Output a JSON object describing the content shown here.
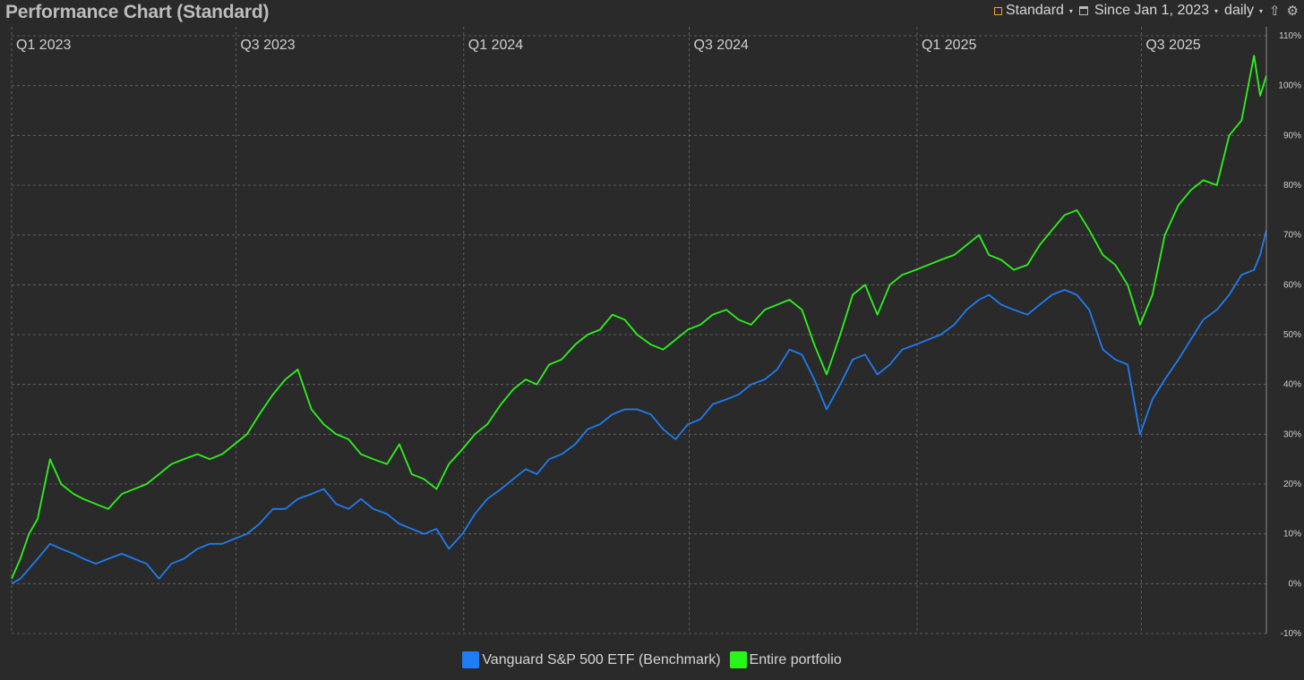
{
  "header": {
    "title": "Performance Chart (Standard)",
    "mode_label": "Standard",
    "period_label": "Since Jan 1, 2023",
    "interval_label": "daily",
    "icons": [
      "standard-square-icon",
      "window-icon",
      "upload-icon",
      "gear-icon"
    ]
  },
  "colors": {
    "background": "#2a2a2a",
    "grid": "#6b6b6b",
    "benchmark": "#1f7cf2",
    "portfolio": "#2af51a",
    "accent": "#f0a030"
  },
  "legend": {
    "benchmark_label": "Vanguard S&P 500 ETF (Benchmark)",
    "portfolio_label": "Entire portfolio"
  },
  "chart_data": {
    "type": "line",
    "title": "Performance Chart (Standard)",
    "x_type": "date",
    "x_range": [
      "2023-01-01",
      "2025-10-10"
    ],
    "x_quarter_ticks": [
      {
        "label": "Q1 2023",
        "date": "2023-01-01"
      },
      {
        "label": "Q3 2023",
        "date": "2023-07-01"
      },
      {
        "label": "Q1 2024",
        "date": "2024-01-01"
      },
      {
        "label": "Q3 2024",
        "date": "2024-07-01"
      },
      {
        "label": "Q1 2025",
        "date": "2025-01-01"
      },
      {
        "label": "Q3 2025",
        "date": "2025-07-01"
      }
    ],
    "y_unit": "%",
    "ylim": [
      -10,
      110
    ],
    "y_ticks": [
      -10,
      0,
      10,
      20,
      30,
      40,
      50,
      60,
      70,
      80,
      90,
      100,
      110
    ],
    "y_tick_labels": [
      "-10%",
      "0%",
      "10%",
      "20%",
      "30%",
      "40%",
      "50%",
      "60%",
      "70%",
      "80%",
      "90%",
      "100%",
      "110%"
    ],
    "grid": true,
    "legend_position": "bottom-center",
    "series": [
      {
        "name": "Vanguard S&P 500 ETF (Benchmark)",
        "points": [
          [
            "2023-01-01",
            0
          ],
          [
            "2023-01-08",
            1
          ],
          [
            "2023-01-15",
            3
          ],
          [
            "2023-01-22",
            5
          ],
          [
            "2023-02-01",
            8
          ],
          [
            "2023-02-10",
            7
          ],
          [
            "2023-02-20",
            6
          ],
          [
            "2023-02-28",
            5
          ],
          [
            "2023-03-10",
            4
          ],
          [
            "2023-03-20",
            5
          ],
          [
            "2023-03-31",
            6
          ],
          [
            "2023-04-10",
            5
          ],
          [
            "2023-04-20",
            4
          ],
          [
            "2023-04-30",
            1
          ],
          [
            "2023-05-10",
            4
          ],
          [
            "2023-05-20",
            5
          ],
          [
            "2023-05-31",
            7
          ],
          [
            "2023-06-10",
            8
          ],
          [
            "2023-06-20",
            8
          ],
          [
            "2023-06-30",
            9
          ],
          [
            "2023-07-10",
            10
          ],
          [
            "2023-07-20",
            12
          ],
          [
            "2023-07-31",
            15
          ],
          [
            "2023-08-10",
            15
          ],
          [
            "2023-08-20",
            17
          ],
          [
            "2023-08-31",
            18
          ],
          [
            "2023-09-10",
            19
          ],
          [
            "2023-09-20",
            16
          ],
          [
            "2023-09-30",
            15
          ],
          [
            "2023-10-10",
            17
          ],
          [
            "2023-10-20",
            15
          ],
          [
            "2023-10-31",
            14
          ],
          [
            "2023-11-10",
            12
          ],
          [
            "2023-11-20",
            11
          ],
          [
            "2023-11-30",
            10
          ],
          [
            "2023-12-10",
            11
          ],
          [
            "2023-12-20",
            7
          ],
          [
            "2023-12-31",
            10
          ],
          [
            "2024-01-10",
            14
          ],
          [
            "2024-01-20",
            17
          ],
          [
            "2024-01-31",
            19
          ],
          [
            "2024-02-10",
            21
          ],
          [
            "2024-02-20",
            23
          ],
          [
            "2024-02-29",
            22
          ],
          [
            "2024-03-10",
            25
          ],
          [
            "2024-03-20",
            26
          ],
          [
            "2024-03-31",
            28
          ],
          [
            "2024-04-10",
            31
          ],
          [
            "2024-04-20",
            32
          ],
          [
            "2024-04-30",
            34
          ],
          [
            "2024-05-10",
            35
          ],
          [
            "2024-05-20",
            35
          ],
          [
            "2024-05-31",
            34
          ],
          [
            "2024-06-10",
            31
          ],
          [
            "2024-06-20",
            29
          ],
          [
            "2024-06-30",
            32
          ],
          [
            "2024-07-10",
            33
          ],
          [
            "2024-07-20",
            36
          ],
          [
            "2024-07-31",
            37
          ],
          [
            "2024-08-10",
            38
          ],
          [
            "2024-08-20",
            40
          ],
          [
            "2024-08-31",
            41
          ],
          [
            "2024-09-10",
            43
          ],
          [
            "2024-09-20",
            47
          ],
          [
            "2024-09-30",
            46
          ],
          [
            "2024-10-10",
            41
          ],
          [
            "2024-10-20",
            35
          ],
          [
            "2024-10-31",
            40
          ],
          [
            "2024-11-10",
            45
          ],
          [
            "2024-11-20",
            46
          ],
          [
            "2024-11-30",
            42
          ],
          [
            "2024-12-10",
            44
          ],
          [
            "2024-12-20",
            47
          ],
          [
            "2024-12-31",
            48
          ],
          [
            "2025-01-10",
            49
          ],
          [
            "2025-01-20",
            50
          ],
          [
            "2025-01-31",
            52
          ],
          [
            "2025-02-10",
            55
          ],
          [
            "2025-02-20",
            57
          ],
          [
            "2025-02-28",
            58
          ],
          [
            "2025-03-10",
            56
          ],
          [
            "2025-03-20",
            55
          ],
          [
            "2025-03-31",
            54
          ],
          [
            "2025-04-10",
            56
          ],
          [
            "2025-04-20",
            58
          ],
          [
            "2025-04-30",
            59
          ],
          [
            "2025-05-10",
            58
          ],
          [
            "2025-05-20",
            55
          ],
          [
            "2025-05-31",
            47
          ],
          [
            "2025-06-10",
            45
          ],
          [
            "2025-06-20",
            44
          ],
          [
            "2025-06-30",
            30
          ],
          [
            "2025-07-10",
            37
          ],
          [
            "2025-07-20",
            41
          ],
          [
            "2025-07-31",
            45
          ],
          [
            "2025-08-10",
            49
          ],
          [
            "2025-08-20",
            53
          ],
          [
            "2025-08-31",
            55
          ],
          [
            "2025-09-10",
            58
          ],
          [
            "2025-09-20",
            62
          ],
          [
            "2025-09-30",
            63
          ],
          [
            "2025-10-05",
            66
          ],
          [
            "2025-10-10",
            71
          ]
        ]
      },
      {
        "name": "Entire portfolio",
        "points": [
          [
            "2023-01-01",
            1
          ],
          [
            "2023-01-08",
            5
          ],
          [
            "2023-01-15",
            10
          ],
          [
            "2023-01-22",
            13
          ],
          [
            "2023-02-01",
            25
          ],
          [
            "2023-02-10",
            20
          ],
          [
            "2023-02-20",
            18
          ],
          [
            "2023-02-28",
            17
          ],
          [
            "2023-03-10",
            16
          ],
          [
            "2023-03-20",
            15
          ],
          [
            "2023-03-31",
            18
          ],
          [
            "2023-04-10",
            19
          ],
          [
            "2023-04-20",
            20
          ],
          [
            "2023-04-30",
            22
          ],
          [
            "2023-05-10",
            24
          ],
          [
            "2023-05-20",
            25
          ],
          [
            "2023-05-31",
            26
          ],
          [
            "2023-06-10",
            25
          ],
          [
            "2023-06-20",
            26
          ],
          [
            "2023-06-30",
            28
          ],
          [
            "2023-07-10",
            30
          ],
          [
            "2023-07-20",
            34
          ],
          [
            "2023-07-31",
            38
          ],
          [
            "2023-08-10",
            41
          ],
          [
            "2023-08-20",
            43
          ],
          [
            "2023-08-31",
            35
          ],
          [
            "2023-09-10",
            32
          ],
          [
            "2023-09-20",
            30
          ],
          [
            "2023-09-30",
            29
          ],
          [
            "2023-10-10",
            26
          ],
          [
            "2023-10-20",
            25
          ],
          [
            "2023-10-31",
            24
          ],
          [
            "2023-11-10",
            28
          ],
          [
            "2023-11-20",
            22
          ],
          [
            "2023-11-30",
            21
          ],
          [
            "2023-12-10",
            19
          ],
          [
            "2023-12-20",
            24
          ],
          [
            "2023-12-31",
            27
          ],
          [
            "2024-01-10",
            30
          ],
          [
            "2024-01-20",
            32
          ],
          [
            "2024-01-31",
            36
          ],
          [
            "2024-02-10",
            39
          ],
          [
            "2024-02-20",
            41
          ],
          [
            "2024-02-29",
            40
          ],
          [
            "2024-03-10",
            44
          ],
          [
            "2024-03-20",
            45
          ],
          [
            "2024-03-31",
            48
          ],
          [
            "2024-04-10",
            50
          ],
          [
            "2024-04-20",
            51
          ],
          [
            "2024-04-30",
            54
          ],
          [
            "2024-05-10",
            53
          ],
          [
            "2024-05-20",
            50
          ],
          [
            "2024-05-31",
            48
          ],
          [
            "2024-06-10",
            47
          ],
          [
            "2024-06-20",
            49
          ],
          [
            "2024-06-30",
            51
          ],
          [
            "2024-07-10",
            52
          ],
          [
            "2024-07-20",
            54
          ],
          [
            "2024-07-31",
            55
          ],
          [
            "2024-08-10",
            53
          ],
          [
            "2024-08-20",
            52
          ],
          [
            "2024-08-31",
            55
          ],
          [
            "2024-09-10",
            56
          ],
          [
            "2024-09-20",
            57
          ],
          [
            "2024-09-30",
            55
          ],
          [
            "2024-10-10",
            48
          ],
          [
            "2024-10-20",
            42
          ],
          [
            "2024-10-31",
            50
          ],
          [
            "2024-11-10",
            58
          ],
          [
            "2024-11-20",
            60
          ],
          [
            "2024-11-30",
            54
          ],
          [
            "2024-12-10",
            60
          ],
          [
            "2024-12-20",
            62
          ],
          [
            "2024-12-31",
            63
          ],
          [
            "2025-01-10",
            64
          ],
          [
            "2025-01-20",
            65
          ],
          [
            "2025-01-31",
            66
          ],
          [
            "2025-02-10",
            68
          ],
          [
            "2025-02-20",
            70
          ],
          [
            "2025-02-28",
            66
          ],
          [
            "2025-03-10",
            65
          ],
          [
            "2025-03-20",
            63
          ],
          [
            "2025-03-31",
            64
          ],
          [
            "2025-04-10",
            68
          ],
          [
            "2025-04-20",
            71
          ],
          [
            "2025-04-30",
            74
          ],
          [
            "2025-05-10",
            75
          ],
          [
            "2025-05-20",
            71
          ],
          [
            "2025-05-31",
            66
          ],
          [
            "2025-06-10",
            64
          ],
          [
            "2025-06-20",
            60
          ],
          [
            "2025-06-30",
            52
          ],
          [
            "2025-07-10",
            58
          ],
          [
            "2025-07-20",
            70
          ],
          [
            "2025-07-31",
            76
          ],
          [
            "2025-08-10",
            79
          ],
          [
            "2025-08-20",
            81
          ],
          [
            "2025-08-31",
            80
          ],
          [
            "2025-09-10",
            90
          ],
          [
            "2025-09-20",
            93
          ],
          [
            "2025-09-30",
            106
          ],
          [
            "2025-10-05",
            98
          ],
          [
            "2025-10-10",
            102
          ]
        ]
      }
    ]
  }
}
